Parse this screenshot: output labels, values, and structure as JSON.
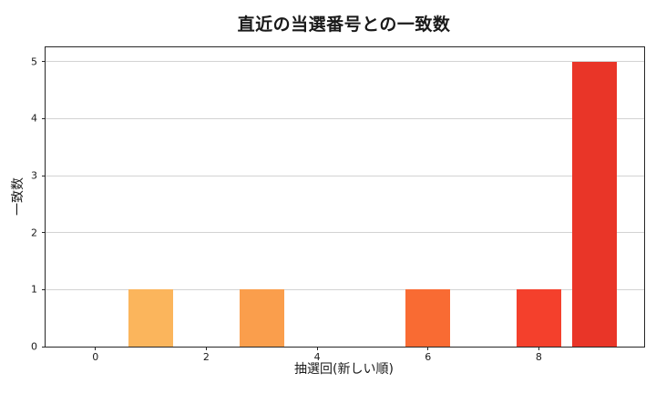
{
  "figure": {
    "background_color": "#ffffff",
    "text_color": "#1a1a1a"
  },
  "chart_data": {
    "type": "bar",
    "title": "直近の当選番号との一致数",
    "xlabel": "抽選回(新しい順)",
    "ylabel": "一致数",
    "categories": [
      0,
      1,
      2,
      3,
      4,
      5,
      6,
      7,
      8,
      9
    ],
    "values": [
      0,
      1,
      0,
      1,
      0,
      0,
      1,
      0,
      1,
      5
    ],
    "bar_colors": [
      null,
      "#fbb55c",
      null,
      "#fa9e4c",
      null,
      null,
      "#f96b33",
      null,
      "#f4402c",
      "#e93528"
    ],
    "bar_width": 0.8,
    "xticks": [
      0,
      2,
      4,
      6,
      8
    ],
    "yticks": [
      0,
      1,
      2,
      3,
      4,
      5
    ],
    "xlim": [
      -0.9,
      9.9
    ],
    "ylim": [
      0,
      5.25
    ],
    "grid": "horizontal",
    "grid_color": "#d3d3d3",
    "spine_color": "#262626",
    "legend": null
  }
}
